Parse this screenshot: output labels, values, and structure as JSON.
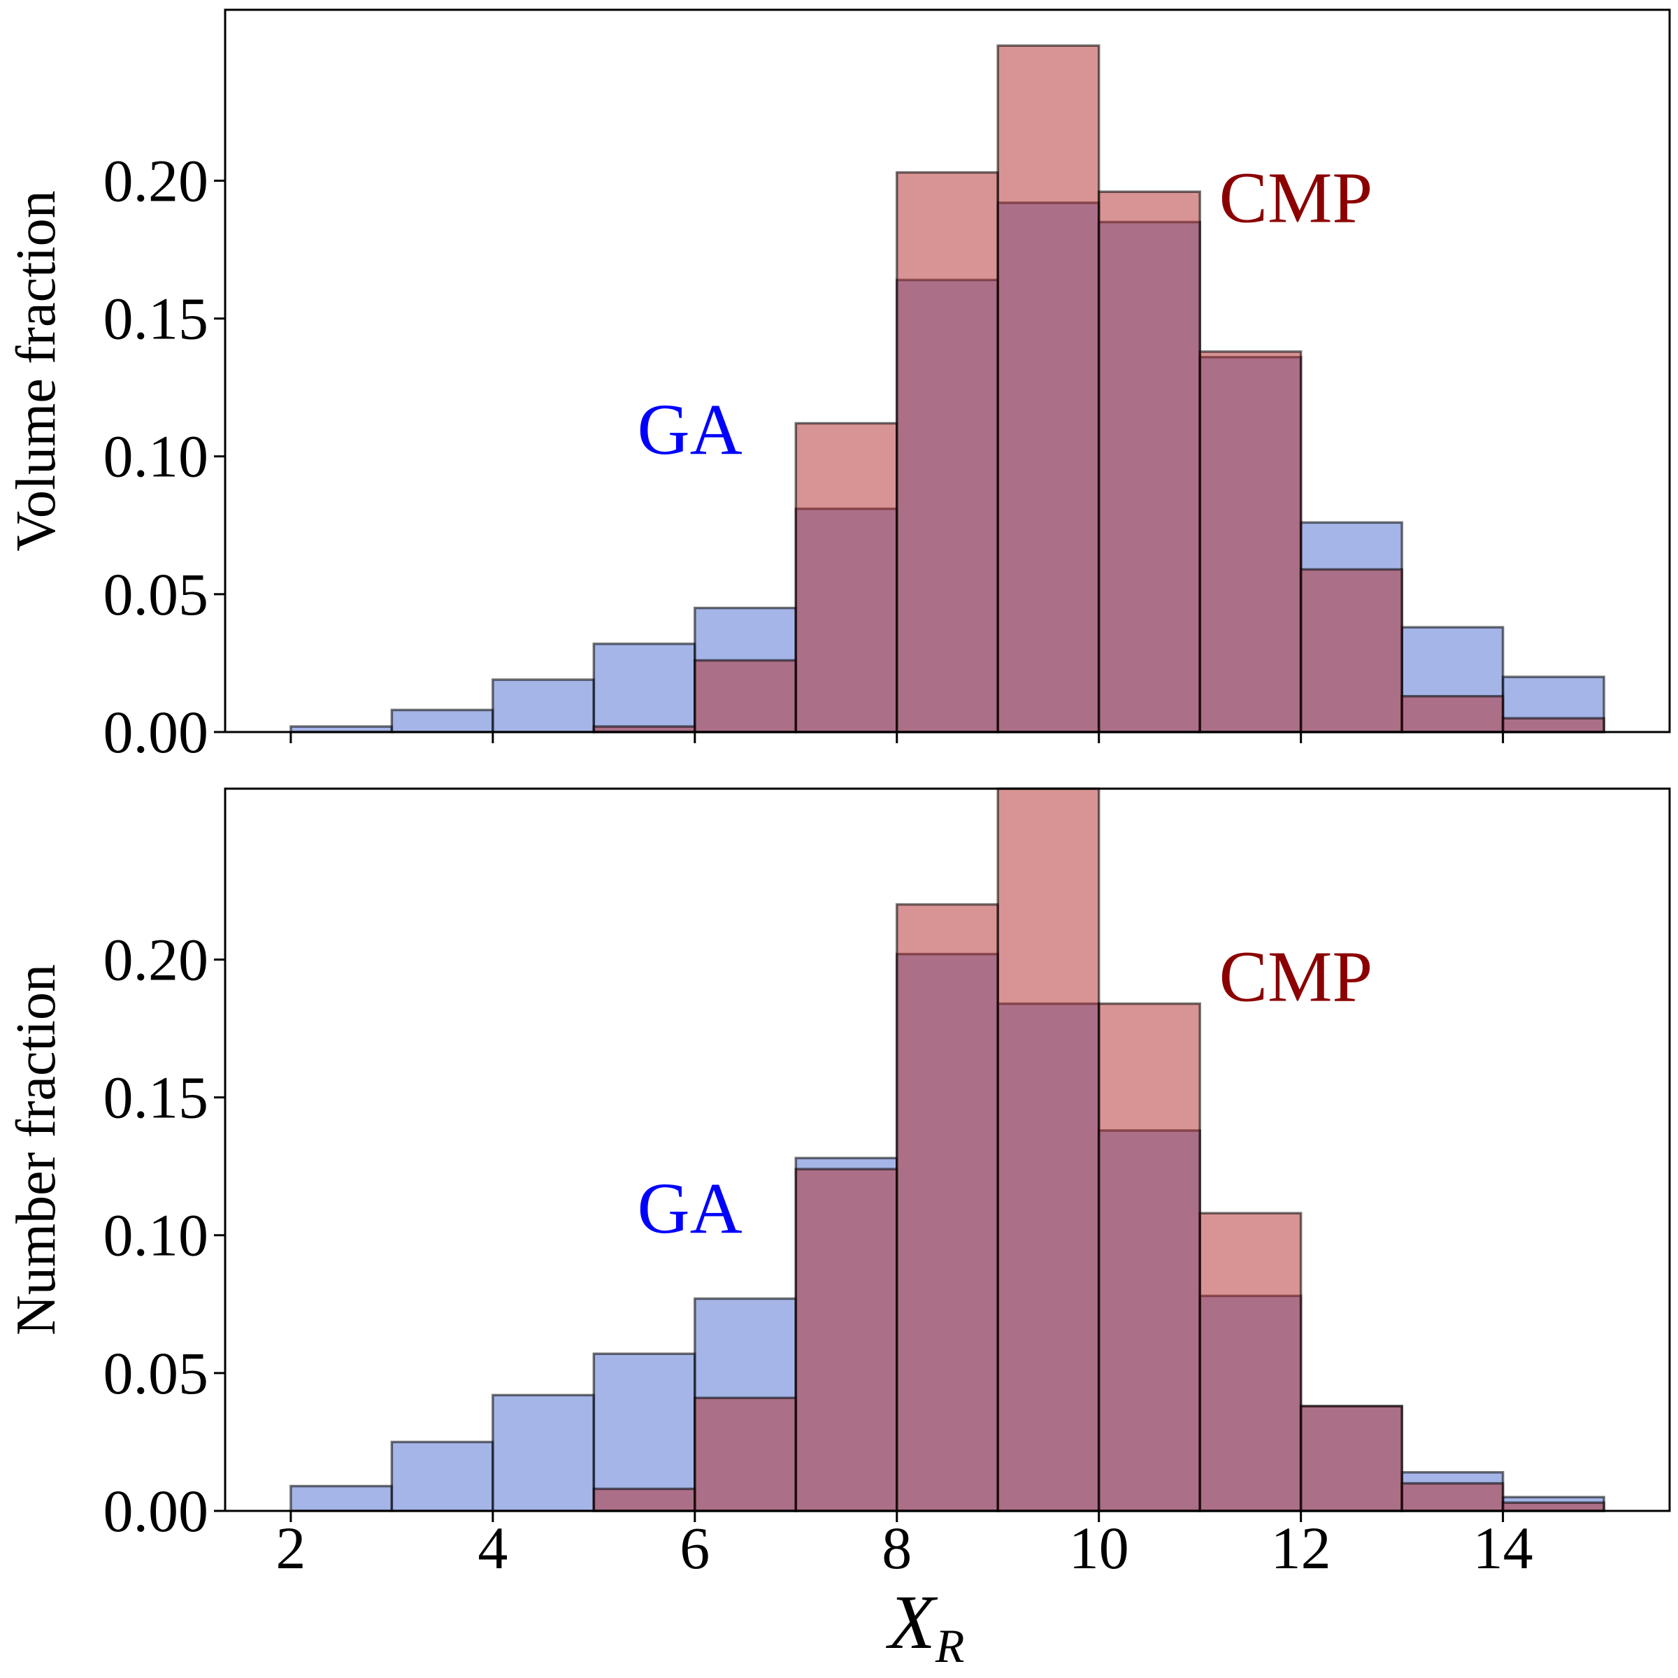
{
  "chart_data": [
    {
      "type": "bar",
      "panel": "top",
      "ylabel": "Volume fraction",
      "xlabel": "",
      "bin_edges": [
        2,
        3,
        4,
        5,
        6,
        7,
        8,
        9,
        10,
        11,
        12,
        13,
        14,
        15
      ],
      "xlim": [
        1.35,
        15.65
      ],
      "ylim": [
        0,
        0.262
      ],
      "yticks": [
        0.0,
        0.05,
        0.1,
        0.15,
        0.2
      ],
      "ytick_labels": [
        "0.00",
        "0.05",
        "0.10",
        "0.15",
        "0.20"
      ],
      "xticks": [
        2,
        4,
        6,
        8,
        10,
        12,
        14
      ],
      "xtick_labels": [],
      "series": [
        {
          "name": "GA",
          "color": "#4c6bcf",
          "values": [
            0.002,
            0.008,
            0.019,
            0.032,
            0.045,
            0.081,
            0.164,
            0.192,
            0.185,
            0.136,
            0.076,
            0.038,
            0.02
          ]
        },
        {
          "name": "CMP",
          "color": "#b22a2a",
          "values": [
            0.0,
            0.0,
            0.0,
            0.002,
            0.026,
            0.112,
            0.203,
            0.249,
            0.196,
            0.138,
            0.059,
            0.013,
            0.005
          ]
        }
      ],
      "annotations": [
        {
          "text": "GA",
          "color": "#0000ff",
          "x": 5.95,
          "y": 0.101
        },
        {
          "text": "CMP",
          "color": "#8b0000",
          "x": 11.95,
          "y": 0.185
        }
      ]
    },
    {
      "type": "bar",
      "panel": "bottom",
      "ylabel": "Number fraction",
      "xlabel": "X_R",
      "xlabel_main": "X",
      "xlabel_sub": "R",
      "bin_edges": [
        2,
        3,
        4,
        5,
        6,
        7,
        8,
        9,
        10,
        11,
        12,
        13,
        14,
        15
      ],
      "xlim": [
        1.35,
        15.65
      ],
      "ylim": [
        0,
        0.262
      ],
      "yticks": [
        0.0,
        0.05,
        0.1,
        0.15,
        0.2
      ],
      "ytick_labels": [
        "0.00",
        "0.05",
        "0.10",
        "0.15",
        "0.20"
      ],
      "xticks": [
        2,
        4,
        6,
        8,
        10,
        12,
        14
      ],
      "xtick_labels": [
        "2",
        "4",
        "6",
        "8",
        "10",
        "12",
        "14"
      ],
      "series": [
        {
          "name": "GA",
          "color": "#4c6bcf",
          "values": [
            0.009,
            0.025,
            0.042,
            0.057,
            0.077,
            0.128,
            0.202,
            0.184,
            0.138,
            0.078,
            0.038,
            0.014,
            0.005
          ]
        },
        {
          "name": "CMP",
          "color": "#b22a2a",
          "values": [
            0.0,
            0.0,
            0.0,
            0.008,
            0.041,
            0.124,
            0.22,
            0.262,
            0.184,
            0.108,
            0.038,
            0.01,
            0.003
          ]
        }
      ],
      "annotations": [
        {
          "text": "GA",
          "color": "#0000ff",
          "x": 5.95,
          "y": 0.101
        },
        {
          "text": "CMP",
          "color": "#8b0000",
          "x": 11.95,
          "y": 0.185
        }
      ]
    }
  ]
}
